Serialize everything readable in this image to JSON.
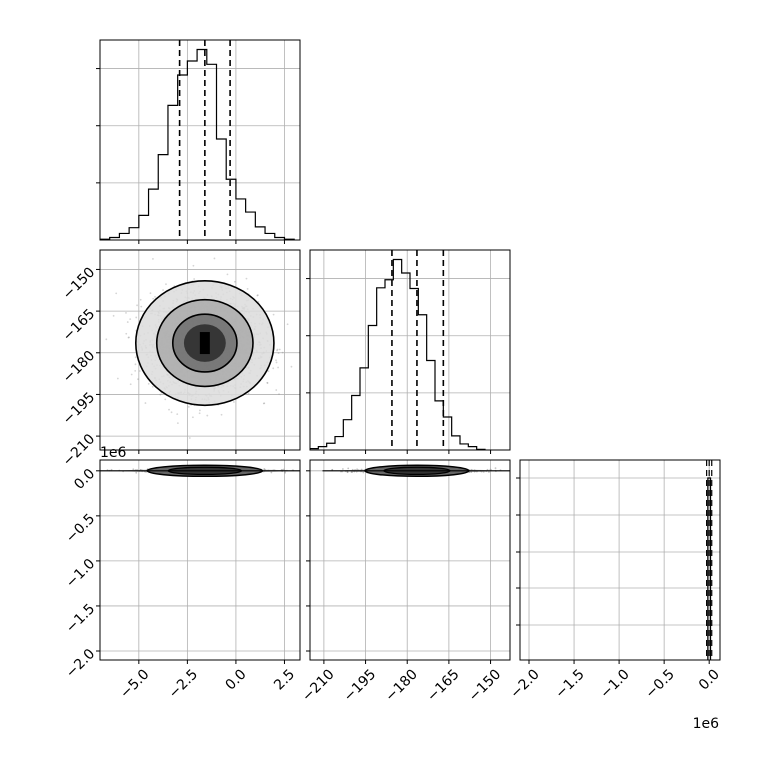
{
  "chart_data": {
    "type": "corner",
    "grid": true,
    "parameters": 3,
    "colors": {
      "line": "#000000",
      "grid": "#b0b0b0",
      "scatter": "#888888",
      "background": "#ffffff"
    },
    "quantiles": [
      [
        -2.9,
        -1.6,
        -0.3
      ],
      [
        -185.5,
        -176.5,
        -167.0
      ],
      [
        -15000,
        0,
        15000
      ]
    ],
    "histogram_1": {
      "edges_start": -7.0,
      "bin_width": 0.5,
      "counts": [
        1,
        3,
        8,
        15,
        30,
        62,
        104,
        164,
        201,
        218,
        232,
        214,
        123,
        74,
        50,
        34,
        16,
        8,
        3,
        1
      ]
    },
    "histogram_2": {
      "edges_start": -215.0,
      "bin_width": 3.0,
      "counts": [
        2,
        5,
        10,
        20,
        45,
        81,
        122,
        185,
        241,
        253,
        283,
        263,
        240,
        201,
        133,
        73,
        49,
        21,
        9,
        5,
        1
      ]
    },
    "histogram_3": {
      "edges_start": -15000,
      "bin_width": 30000,
      "counts": [
        100
      ]
    },
    "pair_1_2": {
      "center": [
        -1.6,
        -176.5
      ],
      "sigma": [
        1.35,
        8.5
      ],
      "contour_widths": [
        0.47,
        0.72,
        1.08,
        1.55
      ]
    },
    "pair_1_3": {
      "center": [
        -1.6,
        0
      ],
      "row_spread": 0.03
    },
    "pair_2_3": {
      "center": [
        -176.5,
        0
      ],
      "row_spread": 0.03
    },
    "axes": {
      "p1": {
        "range": [
          -7.0,
          3.3
        ],
        "ticks": [
          -5.0,
          -2.5,
          0.0,
          2.5
        ],
        "tick_labels": [
          "−5.0",
          "−2.5",
          "0.0",
          "2.5"
        ]
      },
      "p2": {
        "range": [
          -215,
          -143
        ],
        "ticks": [
          -210,
          -195,
          -180,
          -165,
          -150
        ],
        "tick_labels": [
          "−210",
          "−195",
          "−180",
          "−165",
          "−150"
        ]
      },
      "p3": {
        "range": [
          -2.1,
          0.12
        ],
        "ticks": [
          -2.0,
          -1.5,
          -1.0,
          -0.5,
          0.0
        ],
        "tick_labels": [
          "−2.0",
          "−1.5",
          "−1.0",
          "−0.5",
          "0.0"
        ],
        "offset_label": "1e6"
      }
    }
  }
}
